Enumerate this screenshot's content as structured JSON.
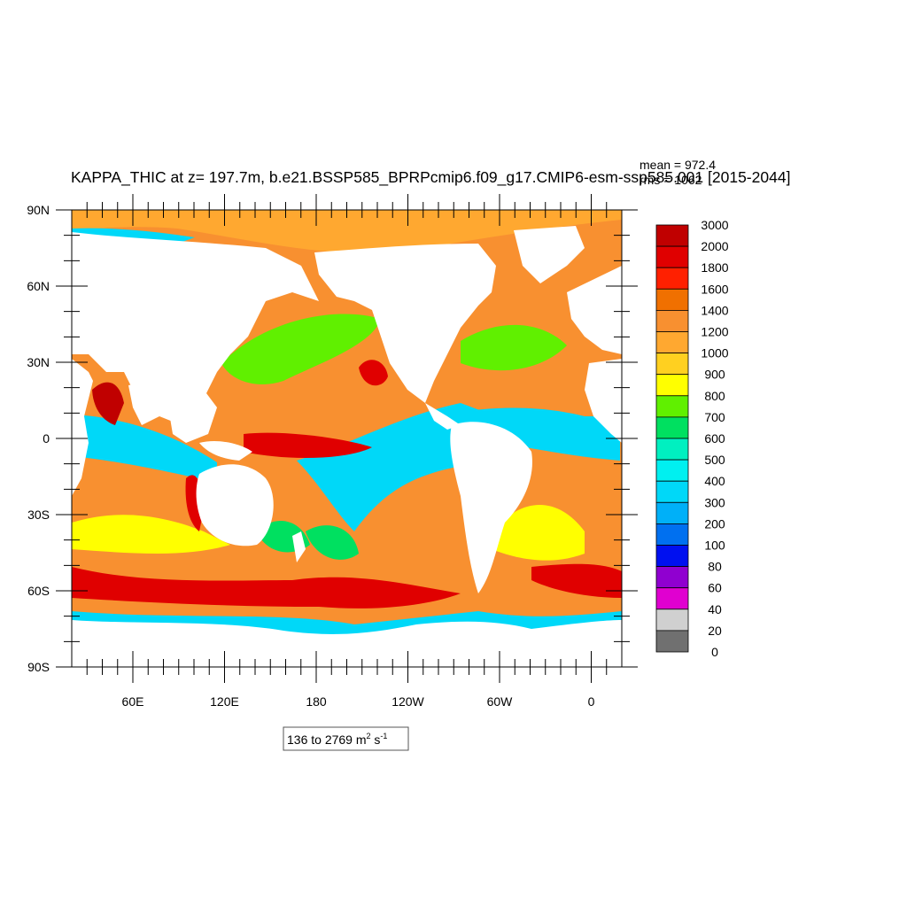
{
  "title": "KAPPA_THIC at z= 197.7m, b.e21.BSSP585_BPRPcmip6.f09_g17.CMIP6-esm-ssp585.001 [2015-2044]",
  "stats": {
    "mean_text": "mean = 972.4",
    "rms_text": "rms = 1062"
  },
  "range_box": {
    "prefix": "136 to 2769 m",
    "sup1": "2",
    "mid": " s",
    "sup2": "-1"
  },
  "map": {
    "lon_center": 200,
    "lon_range": [
      20,
      380
    ],
    "lat_range": [
      -90,
      90
    ],
    "lat_ticks": [
      {
        "lat": 90,
        "label": "90N"
      },
      {
        "lat": 60,
        "label": "60N"
      },
      {
        "lat": 30,
        "label": "30N"
      },
      {
        "lat": 0,
        "label": "0"
      },
      {
        "lat": -30,
        "label": "30S"
      },
      {
        "lat": -60,
        "label": "60S"
      },
      {
        "lat": -90,
        "label": "90S"
      }
    ],
    "lon_ticks": [
      {
        "lon": 60,
        "label": "60E"
      },
      {
        "lon": 120,
        "label": "120E"
      },
      {
        "lon": 180,
        "label": "180"
      },
      {
        "lon": 240,
        "label": "120W"
      },
      {
        "lon": 300,
        "label": "60W"
      },
      {
        "lon": 360,
        "label": "0"
      }
    ]
  },
  "colorbar": {
    "labels": [
      "3000",
      "2000",
      "1800",
      "1600",
      "1400",
      "1200",
      "1000",
      "900",
      "800",
      "700",
      "600",
      "500",
      "400",
      "300",
      "200",
      "100",
      "80",
      "60",
      "40",
      "20",
      "0"
    ],
    "colors": [
      "#c00000",
      "#e00000",
      "#ff2000",
      "#f07000",
      "#f89030",
      "#ffa830",
      "#ffd020",
      "#ffff00",
      "#60f000",
      "#00e060",
      "#00f0c0",
      "#00f0f0",
      "#00d8f8",
      "#00b0f8",
      "#0070f0",
      "#0010f0",
      "#9000d0",
      "#e000d0",
      "#d0d0d0",
      "#707070"
    ]
  }
}
